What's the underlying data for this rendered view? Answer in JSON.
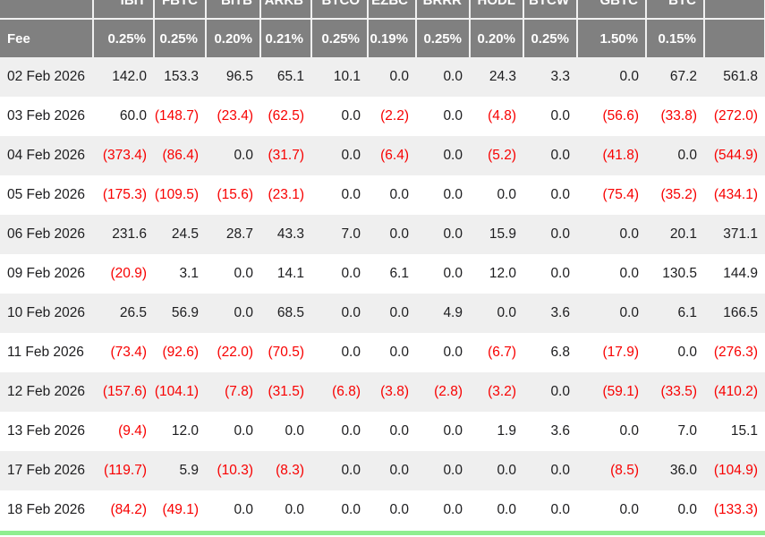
{
  "table": {
    "fee_label": "Fee",
    "tickers": [
      "IBIT",
      "FBTC",
      "BITB",
      "ARKB",
      "BTCO",
      "EZBC",
      "BRRR",
      "HODL",
      "BTCW",
      "GBTC",
      "BTC",
      ""
    ],
    "fees": [
      "0.25%",
      "0.25%",
      "0.20%",
      "0.21%",
      "0.25%",
      "0.19%",
      "0.25%",
      "0.20%",
      "0.25%",
      "1.50%",
      "0.15%",
      ""
    ]
  },
  "colors": {
    "header_bg": "#808080",
    "header_text": "#ffffff",
    "header_border": "#f0f0f0",
    "row_stripe": "#efefef",
    "value_text": "#1d1d1f",
    "negative_value": "#f80000",
    "bottom_accent": "#90ee90"
  },
  "chart_data": {
    "type": "table",
    "columns": [
      "",
      "IBIT",
      "FBTC",
      "BITB",
      "ARKB",
      "BTCO",
      "EZBC",
      "BRRR",
      "HODL",
      "BTCW",
      "GBTC",
      "BTC",
      ""
    ],
    "fee_row": [
      "Fee",
      "0.25%",
      "0.25%",
      "0.20%",
      "0.21%",
      "0.25%",
      "0.19%",
      "0.25%",
      "0.20%",
      "0.25%",
      "1.50%",
      "0.15%",
      ""
    ],
    "negative_format": "parentheses-red",
    "rows": [
      {
        "date": "02 Feb 2026",
        "values": [
          142.0,
          153.3,
          96.5,
          65.1,
          10.1,
          0.0,
          0.0,
          24.3,
          3.3,
          0.0,
          67.2,
          561.8
        ]
      },
      {
        "date": "03 Feb 2026",
        "values": [
          60.0,
          -148.7,
          -23.4,
          -62.5,
          0.0,
          -2.2,
          0.0,
          -4.8,
          0.0,
          -56.6,
          -33.8,
          -272.0
        ]
      },
      {
        "date": "04 Feb 2026",
        "values": [
          -373.4,
          -86.4,
          0.0,
          -31.7,
          0.0,
          -6.4,
          0.0,
          -5.2,
          0.0,
          -41.8,
          0.0,
          -544.9
        ]
      },
      {
        "date": "05 Feb 2026",
        "values": [
          -175.3,
          -109.5,
          -15.6,
          -23.1,
          0.0,
          0.0,
          0.0,
          0.0,
          0.0,
          -75.4,
          -35.2,
          -434.1
        ]
      },
      {
        "date": "06 Feb 2026",
        "values": [
          231.6,
          24.5,
          28.7,
          43.3,
          7.0,
          0.0,
          0.0,
          15.9,
          0.0,
          0.0,
          20.1,
          371.1
        ]
      },
      {
        "date": "09 Feb 2026",
        "values": [
          -20.9,
          3.1,
          0.0,
          14.1,
          0.0,
          6.1,
          0.0,
          12.0,
          0.0,
          0.0,
          130.5,
          144.9
        ]
      },
      {
        "date": "10 Feb 2026",
        "values": [
          26.5,
          56.9,
          0.0,
          68.5,
          0.0,
          0.0,
          4.9,
          0.0,
          3.6,
          0.0,
          6.1,
          166.5
        ]
      },
      {
        "date": "11 Feb 2026",
        "values": [
          -73.4,
          -92.6,
          -22.0,
          -70.5,
          0.0,
          0.0,
          0.0,
          -6.7,
          6.8,
          -17.9,
          0.0,
          -276.3
        ]
      },
      {
        "date": "12 Feb 2026",
        "values": [
          -157.6,
          -104.1,
          -7.8,
          -31.5,
          -6.8,
          -3.8,
          -2.8,
          -3.2,
          0.0,
          -59.1,
          -33.5,
          -410.2
        ]
      },
      {
        "date": "13 Feb 2026",
        "values": [
          -9.4,
          12.0,
          0.0,
          0.0,
          0.0,
          0.0,
          0.0,
          1.9,
          3.6,
          0.0,
          7.0,
          15.1
        ]
      },
      {
        "date": "17 Feb 2026",
        "values": [
          -119.7,
          5.9,
          -10.3,
          -8.3,
          0.0,
          0.0,
          0.0,
          0.0,
          0.0,
          -8.5,
          36.0,
          -104.9
        ]
      },
      {
        "date": "18 Feb 2026",
        "values": [
          -84.2,
          -49.1,
          0.0,
          0.0,
          0.0,
          0.0,
          0.0,
          0.0,
          0.0,
          0.0,
          0.0,
          -133.3
        ]
      }
    ]
  }
}
